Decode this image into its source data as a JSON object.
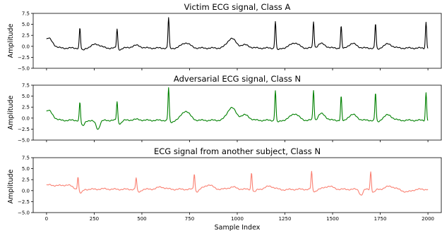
{
  "chart_data": [
    {
      "type": "line",
      "title": "Victim ECG signal, Class A",
      "xlabel": "",
      "ylabel": "Amplitude",
      "xlim": [
        -70,
        2070
      ],
      "ylim": [
        -5.0,
        7.5
      ],
      "yticks": [
        -5.0,
        -2.5,
        0.0,
        2.5,
        5.0,
        7.5
      ],
      "xticks_labeled": false,
      "color": "#000000",
      "baseline": -0.4,
      "r_peaks": [
        {
          "x": 175,
          "y": 4.3
        },
        {
          "x": 370,
          "y": 4.0
        },
        {
          "x": 640,
          "y": 6.5
        },
        {
          "x": 1200,
          "y": 5.8
        },
        {
          "x": 1400,
          "y": 5.5
        },
        {
          "x": 1545,
          "y": 4.6
        },
        {
          "x": 1725,
          "y": 5.2
        },
        {
          "x": 1990,
          "y": 5.6
        }
      ],
      "t_waves": [
        {
          "x": 10,
          "y": 1.8
        },
        {
          "x": 260,
          "y": 0.5
        },
        {
          "x": 470,
          "y": 0.2
        },
        {
          "x": 730,
          "y": 0.8
        },
        {
          "x": 970,
          "y": 1.8
        },
        {
          "x": 1040,
          "y": 0.3
        },
        {
          "x": 1300,
          "y": 0.8
        },
        {
          "x": 1440,
          "y": 0.6
        },
        {
          "x": 1605,
          "y": 0.6
        },
        {
          "x": 1790,
          "y": 0.5
        }
      ],
      "dips": [
        {
          "x": 190,
          "y": -0.9
        },
        {
          "x": 385,
          "y": -0.7
        },
        {
          "x": 655,
          "y": -0.5
        },
        {
          "x": 1215,
          "y": -0.8
        },
        {
          "x": 1415,
          "y": -0.6
        },
        {
          "x": 1560,
          "y": -0.6
        },
        {
          "x": 1740,
          "y": -0.7
        },
        {
          "x": 2000,
          "y": -0.5
        }
      ]
    },
    {
      "type": "line",
      "title": "Adversarial ECG signal, Class N",
      "xlabel": "",
      "ylabel": "Amplitude",
      "xlim": [
        -70,
        2070
      ],
      "ylim": [
        -5.0,
        7.5
      ],
      "yticks": [
        -5.0,
        -2.5,
        0.0,
        2.5,
        5.0,
        7.5
      ],
      "xticks_labeled": false,
      "color": "#008000",
      "baseline": -0.5,
      "r_peaks": [
        {
          "x": 175,
          "y": 3.9
        },
        {
          "x": 370,
          "y": 3.9
        },
        {
          "x": 640,
          "y": 7.0
        },
        {
          "x": 1200,
          "y": 6.4
        },
        {
          "x": 1400,
          "y": 6.2
        },
        {
          "x": 1545,
          "y": 5.0
        },
        {
          "x": 1725,
          "y": 5.8
        },
        {
          "x": 1990,
          "y": 5.9
        }
      ],
      "t_waves": [
        {
          "x": 10,
          "y": 1.7
        },
        {
          "x": 260,
          "y": -0.8
        },
        {
          "x": 470,
          "y": -0.3
        },
        {
          "x": 730,
          "y": 1.6
        },
        {
          "x": 970,
          "y": 2.4
        },
        {
          "x": 1040,
          "y": 0.7
        },
        {
          "x": 1300,
          "y": 1.0
        },
        {
          "x": 1440,
          "y": 1.0
        },
        {
          "x": 1605,
          "y": 0.8
        },
        {
          "x": 1790,
          "y": 0.7
        }
      ],
      "dips": [
        {
          "x": 190,
          "y": -1.8
        },
        {
          "x": 270,
          "y": -2.2
        },
        {
          "x": 385,
          "y": -1.2
        },
        {
          "x": 655,
          "y": -1.0
        },
        {
          "x": 1215,
          "y": -0.9
        },
        {
          "x": 1415,
          "y": -1.0
        },
        {
          "x": 1560,
          "y": -0.8
        },
        {
          "x": 1740,
          "y": -0.9
        },
        {
          "x": 2000,
          "y": -0.6
        }
      ]
    },
    {
      "type": "line",
      "title": "ECG signal from another subject, Class N",
      "xlabel": "Sample Index",
      "ylabel": "Amplitude",
      "xlim": [
        -70,
        2070
      ],
      "ylim": [
        -5.0,
        7.5
      ],
      "yticks": [
        -5.0,
        -2.5,
        0.0,
        2.5,
        5.0,
        7.5
      ],
      "xticks": [
        0,
        250,
        500,
        750,
        1000,
        1250,
        1500,
        1750,
        2000
      ],
      "xticks_labeled": true,
      "color": "#fa8072",
      "baseline": 0.3,
      "r_peaks": [
        {
          "x": 165,
          "y": 3.4
        },
        {
          "x": 470,
          "y": 3.0
        },
        {
          "x": 775,
          "y": 4.0
        },
        {
          "x": 1075,
          "y": 4.3
        },
        {
          "x": 1390,
          "y": 4.4
        },
        {
          "x": 1700,
          "y": 4.5
        }
      ],
      "t_waves": [
        {
          "x": 5,
          "y": 1.2
        },
        {
          "x": 55,
          "y": 1.1
        },
        {
          "x": 110,
          "y": 1.3
        },
        {
          "x": 300,
          "y": 0.4
        },
        {
          "x": 600,
          "y": 0.8
        },
        {
          "x": 850,
          "y": 1.3
        },
        {
          "x": 975,
          "y": 0.8
        },
        {
          "x": 1170,
          "y": 1.0
        },
        {
          "x": 1250,
          "y": 0.2
        },
        {
          "x": 1480,
          "y": 1.0
        },
        {
          "x": 1800,
          "y": 1.0
        },
        {
          "x": 1890,
          "y": -0.3
        }
      ],
      "dips": [
        {
          "x": 180,
          "y": -0.6
        },
        {
          "x": 485,
          "y": -0.3
        },
        {
          "x": 790,
          "y": -0.2
        },
        {
          "x": 1090,
          "y": -0.3
        },
        {
          "x": 1405,
          "y": -0.2
        },
        {
          "x": 1715,
          "y": -0.4
        },
        {
          "x": 1650,
          "y": -1.0
        }
      ]
    }
  ]
}
